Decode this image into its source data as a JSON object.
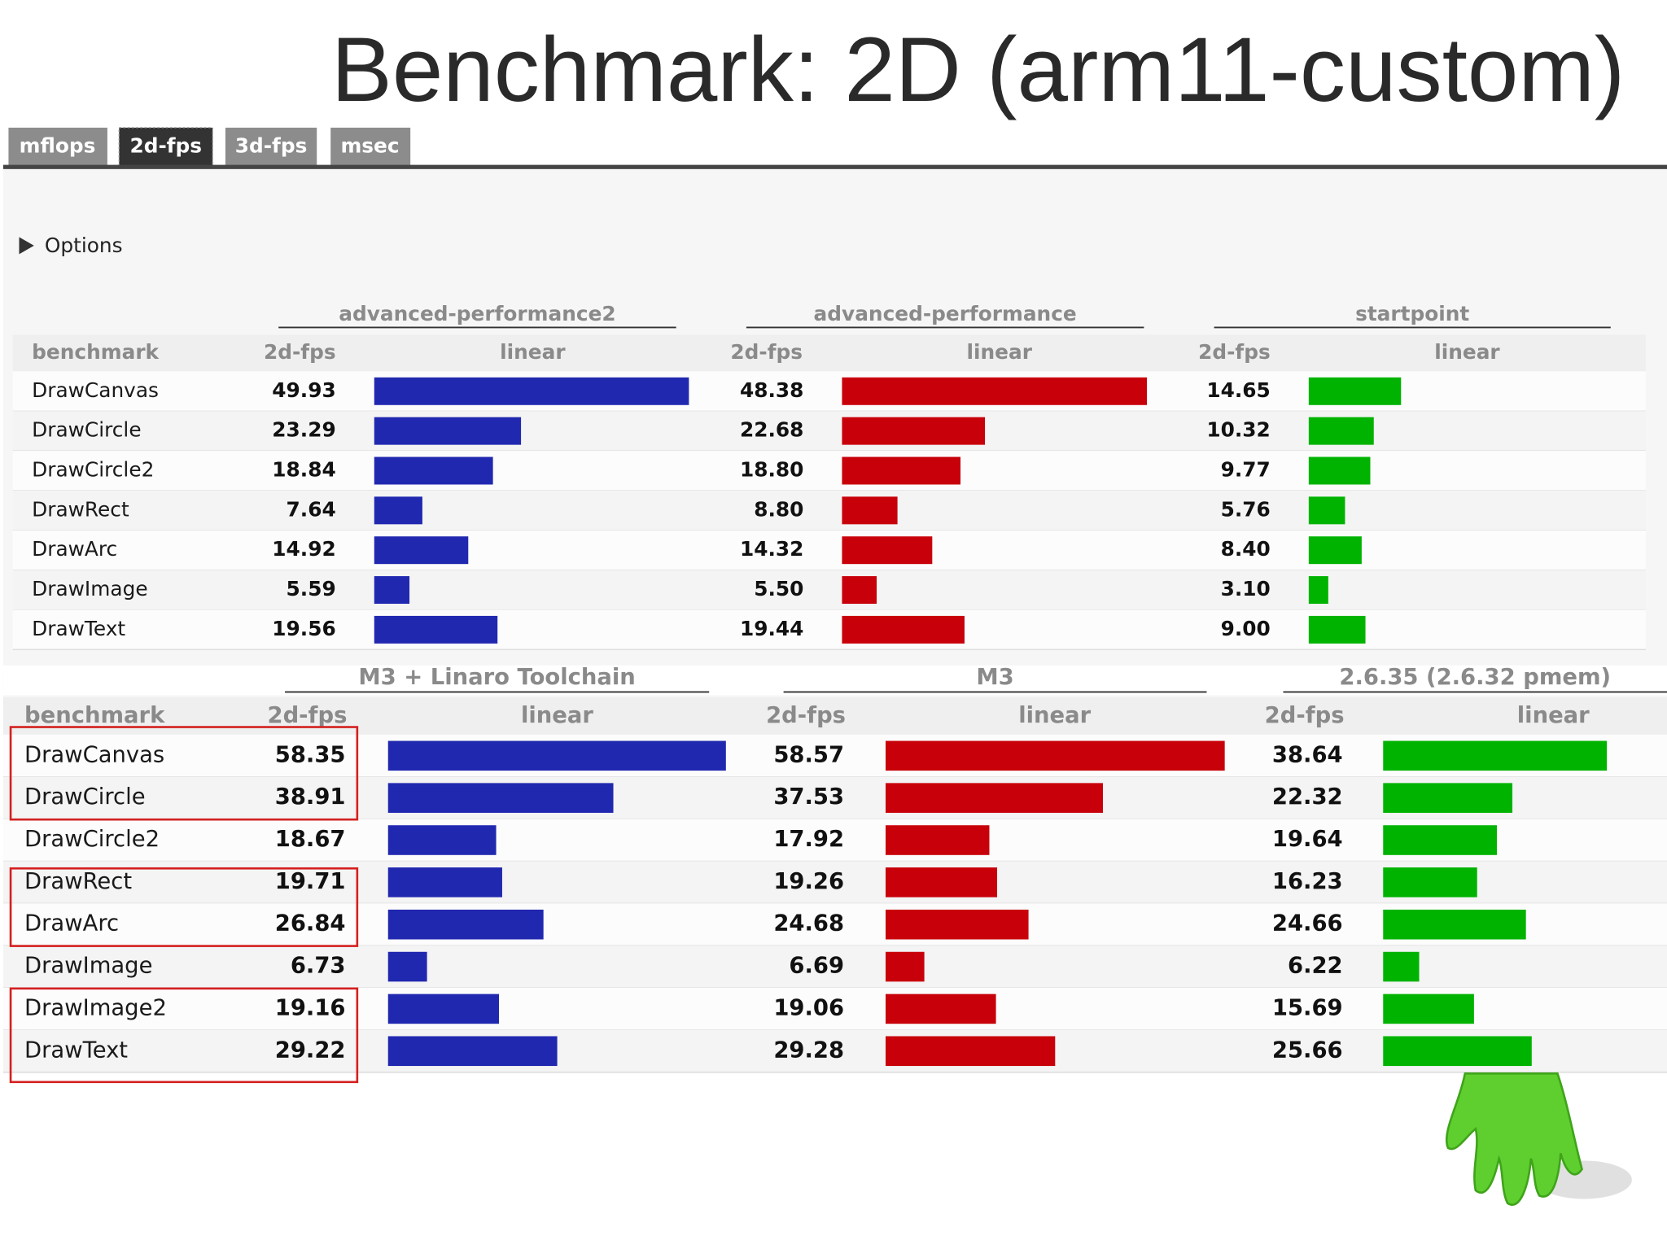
{
  "title": "Benchmark: 2D (arm11-custom)",
  "tabs": [
    "mflops",
    "2d-fps",
    "3d-fps",
    "msec"
  ],
  "options": "Options",
  "tables": [
    {
      "groups": [
        "advanced-performance2",
        "advanced-performance",
        "startpoint"
      ],
      "headers": [
        "benchmark",
        "2d-fps",
        "linear",
        "2d-fps",
        "linear",
        "2d-fps",
        "linear"
      ],
      "colors": [
        "#2128b0",
        "#c8000a",
        "#00b300"
      ],
      "rows": [
        {
          "name": "DrawCanvas",
          "values": [
            49.93,
            48.38,
            14.65
          ],
          "value_labels": [
            "49.93",
            "48.38",
            "14.65"
          ]
        },
        {
          "name": "DrawCircle",
          "values": [
            23.29,
            22.68,
            10.32
          ],
          "value_labels": [
            "23.29",
            "22.68",
            "10.32"
          ]
        },
        {
          "name": "DrawCircle2",
          "values": [
            18.84,
            18.8,
            9.77
          ],
          "value_labels": [
            "18.84",
            "18.80",
            "9.77"
          ]
        },
        {
          "name": "DrawRect",
          "values": [
            7.64,
            8.8,
            5.76
          ],
          "value_labels": [
            "7.64",
            "8.80",
            "5.76"
          ]
        },
        {
          "name": "DrawArc",
          "values": [
            14.92,
            14.32,
            8.4
          ],
          "value_labels": [
            "14.92",
            "14.32",
            "8.40"
          ]
        },
        {
          "name": "DrawImage",
          "values": [
            5.59,
            5.5,
            3.1
          ],
          "value_labels": [
            "5.59",
            "5.50",
            "3.10"
          ]
        },
        {
          "name": "DrawText",
          "values": [
            19.56,
            19.44,
            9
          ],
          "value_labels": [
            "19.56",
            "19.44",
            "9.00"
          ]
        }
      ]
    },
    {
      "groups": [
        "M3 + Linaro Toolchain",
        "M3",
        "2.6.35 (2.6.32 pmem)"
      ],
      "headers": [
        "benchmark",
        "2d-fps",
        "linear",
        "2d-fps",
        "linear",
        "2d-fps",
        "linear"
      ],
      "colors": [
        "#2128b0",
        "#c8000a",
        "#00b300"
      ],
      "rows": [
        {
          "name": "DrawCanvas",
          "values": [
            58.35,
            58.57,
            38.64
          ],
          "value_labels": [
            "58.35",
            "58.57",
            "38.64"
          ]
        },
        {
          "name": "DrawCircle",
          "values": [
            38.91,
            37.53,
            22.32
          ],
          "value_labels": [
            "38.91",
            "37.53",
            "22.32"
          ]
        },
        {
          "name": "DrawCircle2",
          "values": [
            18.67,
            17.92,
            19.64
          ],
          "value_labels": [
            "18.67",
            "17.92",
            "19.64"
          ]
        },
        {
          "name": "DrawRect",
          "values": [
            19.71,
            19.26,
            16.23
          ],
          "value_labels": [
            "19.71",
            "19.26",
            "16.23"
          ]
        },
        {
          "name": "DrawArc",
          "values": [
            26.84,
            24.68,
            24.66
          ],
          "value_labels": [
            "26.84",
            "24.68",
            "24.66"
          ]
        },
        {
          "name": "DrawImage",
          "values": [
            6.73,
            6.69,
            6.22
          ],
          "value_labels": [
            "6.73",
            "6.69",
            "6.22"
          ]
        },
        {
          "name": "DrawImage2",
          "values": [
            19.16,
            19.06,
            15.69
          ],
          "value_labels": [
            "19.16",
            "19.06",
            "15.69"
          ]
        },
        {
          "name": "DrawText",
          "values": [
            29.22,
            29.28,
            25.66
          ],
          "value_labels": [
            "29.22",
            "29.28",
            "25.66"
          ]
        }
      ]
    }
  ]
}
